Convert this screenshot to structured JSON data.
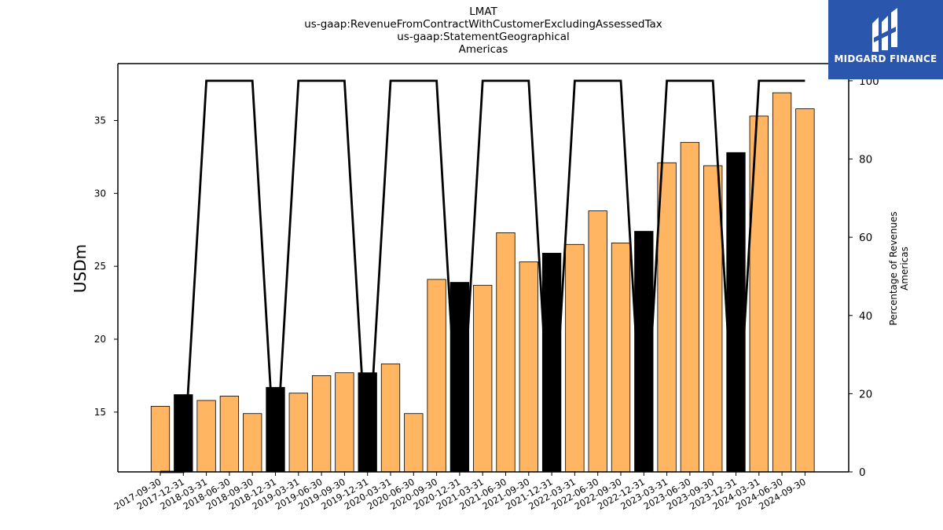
{
  "titles": {
    "line1": "LMAT",
    "line2": "us-gaap:RevenueFromContractWithCustomerExcludingAssessedTax",
    "line3": "us-gaap:StatementGeographical",
    "line4": "Americas"
  },
  "logo": {
    "text": "MIDGARD FINANCE",
    "background": "#2a56ad"
  },
  "colors": {
    "bar_quarter": "#ffb561",
    "bar_year_end": "#000000",
    "line": "#000000"
  },
  "chart_data": {
    "type": "bar",
    "title": "LMAT\nus-gaap:RevenueFromContractWithCustomerExcludingAssessedTax\nus-gaap:StatementGeographical\nAmericas",
    "ylabel": "USDm",
    "y2label_line1": "Percentage of Revenues",
    "y2label_line2": "Americas",
    "ylim": [
      10.9,
      38.9
    ],
    "y2lim": [
      0,
      104.4
    ],
    "yticks": [
      15,
      20,
      25,
      30,
      35
    ],
    "y2ticks": [
      0,
      20,
      40,
      60,
      80,
      100
    ],
    "categories": [
      "2017-09-30",
      "2017-12-31",
      "2018-03-31",
      "2018-06-30",
      "2018-09-30",
      "2018-12-31",
      "2019-03-31",
      "2019-06-30",
      "2019-09-30",
      "2019-12-31",
      "2020-03-31",
      "2020-06-30",
      "2020-09-30",
      "2020-12-31",
      "2021-03-31",
      "2021-06-30",
      "2021-09-30",
      "2021-12-31",
      "2022-03-31",
      "2022-06-30",
      "2022-09-30",
      "2022-12-31",
      "2023-03-31",
      "2023-06-30",
      "2023-09-30",
      "2023-12-31",
      "2024-03-31",
      "2024-06-30",
      "2024-09-30"
    ],
    "series": [
      {
        "type": "bar",
        "values": [
          15.4,
          16.2,
          15.8,
          16.1,
          14.9,
          16.7,
          16.3,
          17.5,
          17.7,
          17.7,
          18.3,
          14.9,
          24.1,
          23.9,
          23.7,
          27.3,
          25.3,
          25.9,
          26.5,
          28.8,
          26.6,
          27.4,
          32.1,
          33.5,
          31.9,
          32.8,
          35.3,
          36.9,
          35.8
        ],
        "year_end": [
          false,
          true,
          false,
          false,
          false,
          true,
          false,
          false,
          false,
          true,
          false,
          false,
          false,
          true,
          false,
          false,
          false,
          true,
          false,
          false,
          false,
          true,
          false,
          false,
          false,
          true,
          false,
          false,
          false
        ]
      },
      {
        "type": "line",
        "axis": "right",
        "values": [
          0,
          0,
          100,
          100,
          100,
          0,
          100,
          100,
          100,
          0,
          100,
          100,
          100,
          0,
          100,
          100,
          100,
          0,
          100,
          100,
          100,
          0,
          100,
          100,
          100,
          0,
          100,
          100,
          100
        ]
      }
    ]
  }
}
